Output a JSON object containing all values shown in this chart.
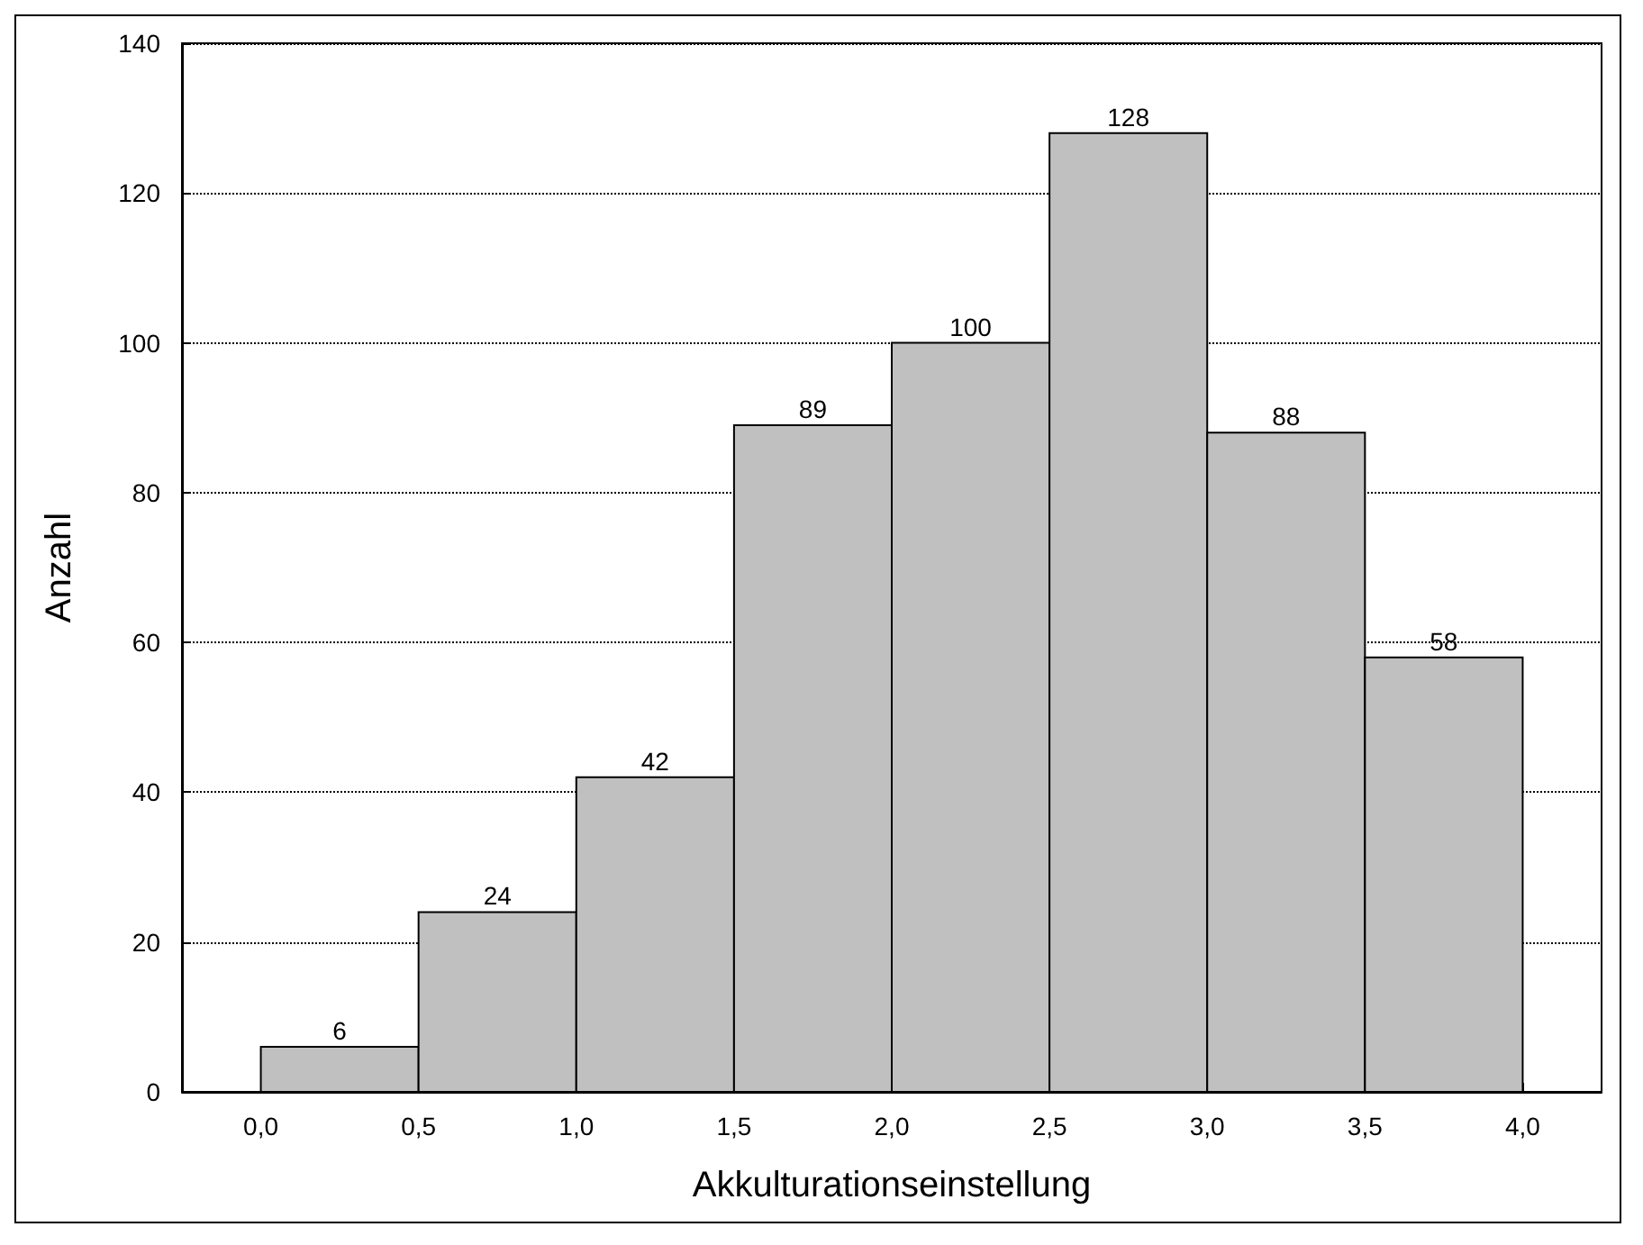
{
  "chart_data": {
    "type": "histogram",
    "xlabel": "Akkulturationseinstellung",
    "ylabel": "Anzahl",
    "bins": [
      0,
      0.5,
      1,
      1.5,
      2,
      2.5,
      3,
      3.5,
      4
    ],
    "values": [
      6,
      24,
      42,
      89,
      100,
      128,
      88,
      58
    ],
    "color": "#c0c0c0",
    "xlim": [
      -0.25,
      4.25
    ],
    "xticks": [
      {
        "value": 0,
        "label": "0,0"
      },
      {
        "value": 0.5,
        "label": "0,5"
      },
      {
        "value": 1,
        "label": "1,0"
      },
      {
        "value": 1.5,
        "label": "1,5"
      },
      {
        "value": 2,
        "label": "2,0"
      },
      {
        "value": 2.5,
        "label": "2,5"
      },
      {
        "value": 3,
        "label": "3,0"
      },
      {
        "value": 3.5,
        "label": "3,5"
      },
      {
        "value": 4,
        "label": "4,0"
      }
    ],
    "ylim": [
      0,
      140
    ],
    "yticks": [
      0,
      20,
      40,
      60,
      80,
      100,
      120,
      140
    ],
    "grid": "y",
    "data_labels": true
  }
}
